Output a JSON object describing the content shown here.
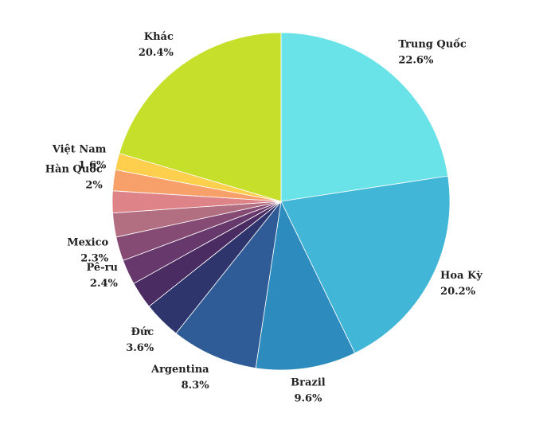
{
  "chart_data": {
    "type": "pie",
    "categories": [
      "Trung Quốc",
      "Hoa Kỳ",
      "Brazil",
      "Argentina",
      "Đức",
      null,
      "Pê-ru",
      "Mexico",
      null,
      null,
      "Hàn Quốc",
      "Việt Nam",
      "Khác"
    ],
    "values": [
      22.6,
      20.2,
      9.6,
      8.3,
      3.6,
      2.6,
      2.4,
      2.3,
      2.3,
      2.1,
      2,
      1.6,
      20.4
    ],
    "value_labels": [
      "22.6%",
      "20.2%",
      "9.6%",
      "8.3%",
      "3.6%",
      null,
      "2.4%",
      "2.3%",
      null,
      null,
      "2%",
      "1.6%",
      "20.4%"
    ],
    "colors": [
      "#6ae3e8",
      "#41b6d7",
      "#2e8bbd",
      "#2f5c96",
      "#2e356c",
      "#4a2c63",
      "#66386c",
      "#854b75",
      "#b36f82",
      "#de8388",
      "#f7a06a",
      "#fecf4c",
      "#c6df2b"
    ]
  }
}
